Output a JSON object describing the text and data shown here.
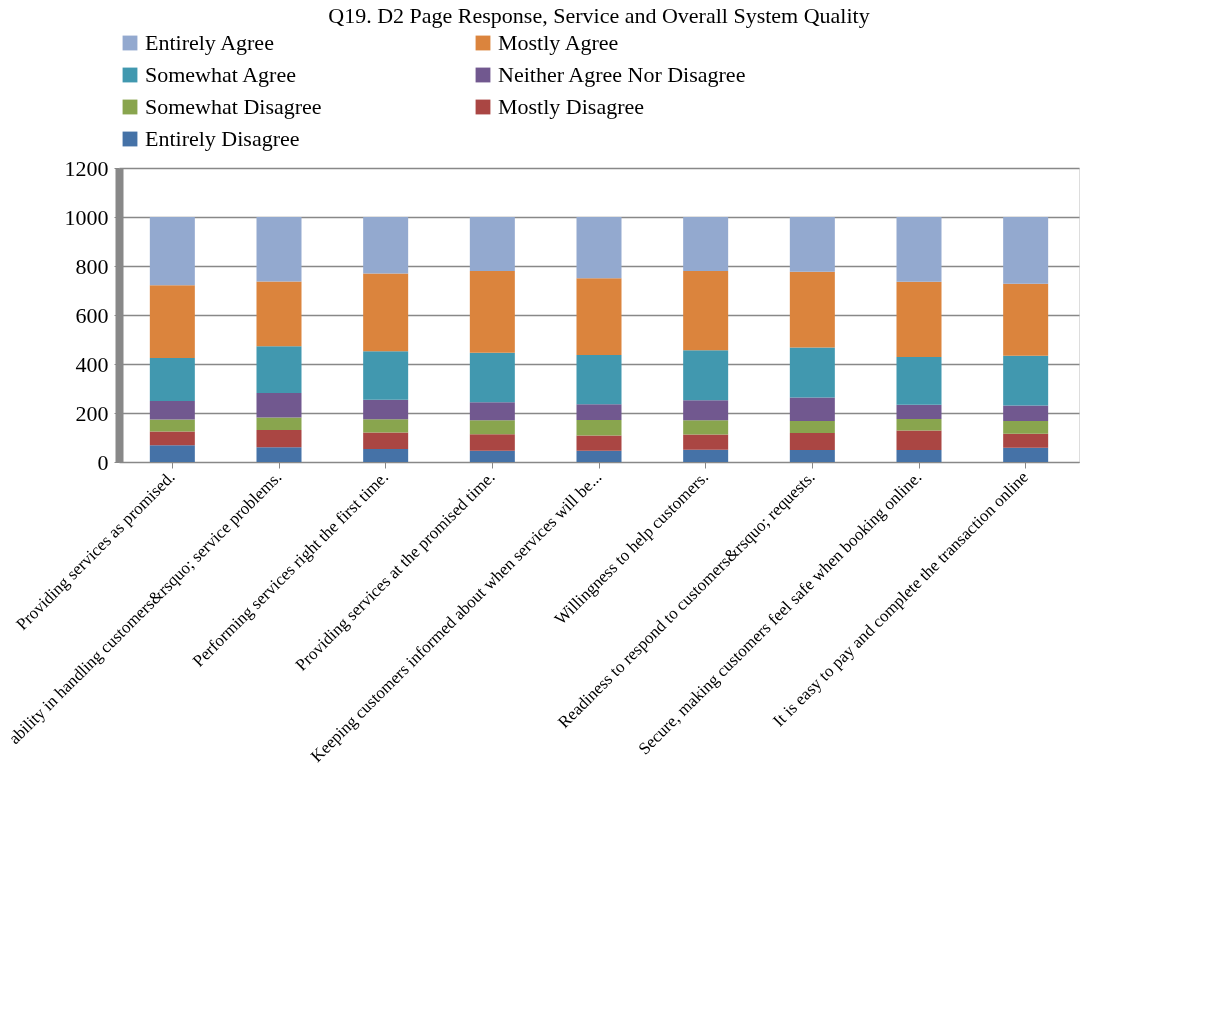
{
  "chart_data": {
    "type": "bar",
    "stacked": true,
    "title": "Q19. D2 Page Response, Service and Overall System Quality",
    "categories": [
      "Providing services as promised.",
      "ability in handling customers&rsquo; service problems.",
      "Performing services right the first time.",
      "Providing services at the promised time.",
      "Keeping customers informed about when services will be...",
      "Willingness to help customers.",
      "Readiness to respond to customers&rsquo; requests.",
      "Secure, making customers feel safe when booking online.",
      "It is easy to pay and complete the transaction online"
    ],
    "series": [
      {
        "name": "Entirely Disagree",
        "color": "#4572a7",
        "values": [
          68,
          60,
          53,
          46,
          46,
          50,
          49,
          49,
          58
        ]
      },
      {
        "name": "Mostly Disagree",
        "color": "#aa4643",
        "values": [
          56,
          71,
          67,
          67,
          62,
          62,
          69,
          80,
          57
        ]
      },
      {
        "name": "Somewhat Disagree",
        "color": "#89a54e",
        "values": [
          49,
          51,
          54,
          57,
          63,
          58,
          49,
          47,
          52
        ]
      },
      {
        "name": "Neither Agree Nor Disagree",
        "color": "#71588f",
        "values": [
          76,
          100,
          80,
          74,
          65,
          82,
          96,
          58,
          64
        ]
      },
      {
        "name": "Somewhat Agree",
        "color": "#4198af",
        "values": [
          175,
          190,
          198,
          202,
          201,
          204,
          204,
          195,
          203
        ]
      },
      {
        "name": "Mostly Agree",
        "color": "#db843d",
        "values": [
          297,
          265,
          317,
          334,
          313,
          324,
          310,
          307,
          294
        ]
      },
      {
        "name": "Entirely Agree",
        "color": "#93a9cf",
        "values": [
          279,
          263,
          231,
          220,
          250,
          220,
          223,
          264,
          272
        ]
      }
    ],
    "ylim": [
      0,
      1200
    ],
    "yticks": [
      0,
      200,
      400,
      600,
      800,
      1000,
      1200
    ],
    "grid": "y",
    "legend": "top"
  }
}
